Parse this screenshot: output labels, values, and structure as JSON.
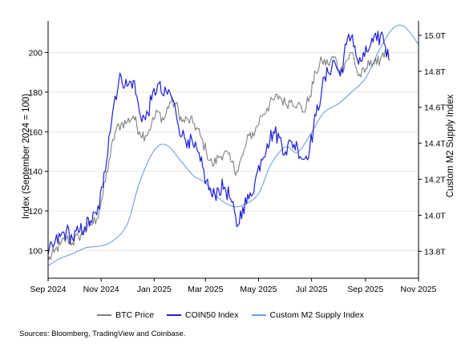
{
  "chart_data": {
    "type": "line",
    "ylabel_left": "Index (September 2024 = 100)",
    "ylabel_right": "Custom M2 Supply Index",
    "ylim_left": [
      86,
      216
    ],
    "ylim_right": [
      13.65,
      15.08
    ],
    "yticks_left": [
      100,
      120,
      140,
      160,
      180,
      200
    ],
    "yticks_right": [
      {
        "value": 13.8,
        "label": "13.8T"
      },
      {
        "value": 14.0,
        "label": "14.0T"
      },
      {
        "value": 14.2,
        "label": "14.2T"
      },
      {
        "value": 14.4,
        "label": "14.4T"
      },
      {
        "value": 14.6,
        "label": "14.6T"
      },
      {
        "value": 14.8,
        "label": "14.8T"
      },
      {
        "value": 15.0,
        "label": "15.0T"
      }
    ],
    "xlim": [
      "2024-09-01",
      "2025-11-01"
    ],
    "xticks": [
      {
        "date": "2024-09-01",
        "label": "Sep 2024"
      },
      {
        "date": "2024-11-01",
        "label": "Nov 2024"
      },
      {
        "date": "2025-01-01",
        "label": "Jan 2025"
      },
      {
        "date": "2025-03-01",
        "label": "Mar 2025"
      },
      {
        "date": "2025-05-01",
        "label": "May 2025"
      },
      {
        "date": "2025-07-01",
        "label": "Jul 2025"
      },
      {
        "date": "2025-09-01",
        "label": "Sep 2025"
      },
      {
        "date": "2025-11-01",
        "label": "Nov 2025"
      }
    ],
    "grid": "horizontal",
    "legend_position": "bottom",
    "series": [
      {
        "name": "BTC Price",
        "axis": "left",
        "color": "#808080",
        "x": [
          "2024-09-01",
          "2024-09-08",
          "2024-09-15",
          "2024-09-22",
          "2024-09-29",
          "2024-10-06",
          "2024-10-13",
          "2024-10-20",
          "2024-10-27",
          "2024-11-03",
          "2024-11-10",
          "2024-11-17",
          "2024-11-24",
          "2024-12-01",
          "2024-12-08",
          "2024-12-15",
          "2024-12-22",
          "2024-12-29",
          "2025-01-05",
          "2025-01-12",
          "2025-01-19",
          "2025-01-26",
          "2025-02-02",
          "2025-02-09",
          "2025-02-16",
          "2025-02-23",
          "2025-03-02",
          "2025-03-09",
          "2025-03-16",
          "2025-03-23",
          "2025-03-30",
          "2025-04-06",
          "2025-04-13",
          "2025-04-20",
          "2025-04-27",
          "2025-05-04",
          "2025-05-11",
          "2025-05-18",
          "2025-05-25",
          "2025-06-01",
          "2025-06-08",
          "2025-06-15",
          "2025-06-22",
          "2025-06-29",
          "2025-07-06",
          "2025-07-13",
          "2025-07-20",
          "2025-07-27",
          "2025-08-03",
          "2025-08-10",
          "2025-08-17",
          "2025-08-24",
          "2025-08-31",
          "2025-09-07",
          "2025-09-14",
          "2025-09-21",
          "2025-09-28"
        ],
        "values": [
          95,
          99,
          103,
          106,
          104,
          107,
          110,
          113,
          116,
          128,
          145,
          160,
          164,
          165,
          168,
          160,
          158,
          164,
          170,
          166,
          175,
          174,
          165,
          166,
          164,
          158,
          150,
          143,
          147,
          150,
          145,
          140,
          148,
          158,
          160,
          168,
          172,
          176,
          178,
          174,
          176,
          174,
          170,
          178,
          190,
          196,
          194,
          198,
          190,
          196,
          200,
          188,
          190,
          196,
          194,
          200,
          198
        ]
      },
      {
        "name": "COIN50 Index",
        "axis": "left",
        "color": "#1f1fd6",
        "x": [
          "2024-09-01",
          "2024-09-08",
          "2024-09-15",
          "2024-09-22",
          "2024-09-29",
          "2024-10-06",
          "2024-10-13",
          "2024-10-20",
          "2024-10-27",
          "2024-11-03",
          "2024-11-10",
          "2024-11-17",
          "2024-11-24",
          "2024-12-01",
          "2024-12-08",
          "2024-12-15",
          "2024-12-22",
          "2024-12-29",
          "2025-01-05",
          "2025-01-12",
          "2025-01-19",
          "2025-01-26",
          "2025-02-02",
          "2025-02-09",
          "2025-02-16",
          "2025-02-23",
          "2025-03-02",
          "2025-03-09",
          "2025-03-16",
          "2025-03-23",
          "2025-03-30",
          "2025-04-06",
          "2025-04-13",
          "2025-04-20",
          "2025-04-27",
          "2025-05-04",
          "2025-05-11",
          "2025-05-18",
          "2025-05-25",
          "2025-06-01",
          "2025-06-08",
          "2025-06-15",
          "2025-06-22",
          "2025-06-29",
          "2025-07-06",
          "2025-07-13",
          "2025-07-20",
          "2025-07-27",
          "2025-08-03",
          "2025-08-10",
          "2025-08-17",
          "2025-08-24",
          "2025-08-31",
          "2025-09-07",
          "2025-09-14",
          "2025-09-21",
          "2025-09-28"
        ],
        "values": [
          98,
          103,
          107,
          110,
          106,
          109,
          112,
          115,
          118,
          132,
          158,
          178,
          188,
          183,
          186,
          170,
          166,
          176,
          184,
          178,
          180,
          170,
          158,
          156,
          152,
          145,
          135,
          127,
          131,
          132,
          126,
          112,
          122,
          126,
          135,
          146,
          154,
          160,
          157,
          150,
          155,
          152,
          146,
          152,
          168,
          182,
          190,
          196,
          188,
          204,
          209,
          194,
          198,
          204,
          206,
          209,
          196
        ]
      },
      {
        "name": "Custom M2 Supply Index",
        "axis": "right",
        "color": "#6e9ee6",
        "x": [
          "2024-09-01",
          "2024-09-15",
          "2024-10-01",
          "2024-10-15",
          "2024-11-01",
          "2024-11-15",
          "2024-12-01",
          "2024-12-15",
          "2025-01-01",
          "2025-01-15",
          "2025-02-01",
          "2025-02-15",
          "2025-03-01",
          "2025-03-15",
          "2025-04-01",
          "2025-04-15",
          "2025-05-01",
          "2025-05-15",
          "2025-06-01",
          "2025-06-15",
          "2025-07-01",
          "2025-07-15",
          "2025-08-01",
          "2025-08-15",
          "2025-09-01",
          "2025-09-15",
          "2025-10-01",
          "2025-10-15",
          "2025-11-01"
        ],
        "values": [
          13.72,
          13.76,
          13.79,
          13.82,
          13.83,
          13.86,
          13.95,
          14.18,
          14.36,
          14.39,
          14.3,
          14.22,
          14.18,
          14.1,
          14.05,
          14.06,
          14.12,
          14.28,
          14.38,
          14.35,
          14.46,
          14.57,
          14.62,
          14.68,
          14.76,
          14.9,
          15.03,
          15.05,
          14.95
        ]
      }
    ]
  },
  "legend": [
    {
      "label": "BTC Price",
      "color": "#808080"
    },
    {
      "label": "COIN50 Index",
      "color": "#1f1fd6"
    },
    {
      "label": "Custom M2 Supply Index",
      "color": "#6e9ee6"
    }
  ],
  "source": "Sources: Bloomberg, TradingView and Coinbase."
}
